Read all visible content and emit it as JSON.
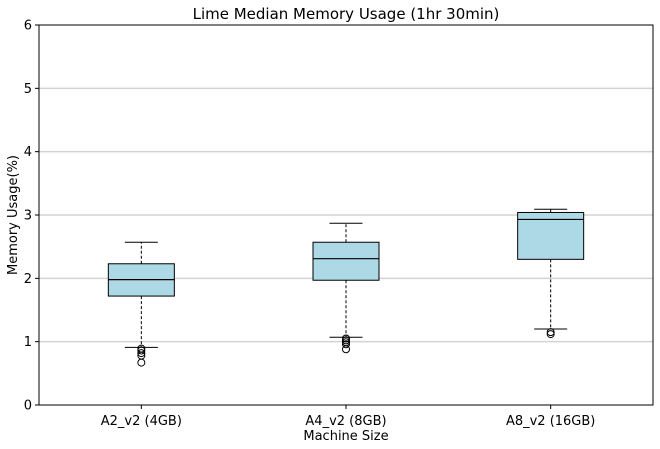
{
  "chart_data": {
    "type": "box",
    "title": "Lime Median Memory Usage (1hr 30min)",
    "xlabel": "Machine Size",
    "ylabel": "Memory Usage(%)",
    "ylim": [
      0,
      6
    ],
    "yticks": [
      0,
      1,
      2,
      3,
      4,
      5,
      6
    ],
    "grid": "horizontal",
    "box_color": "#add8e6",
    "categories": [
      "A2_v2 (4GB)",
      "A4_v2 (8GB)",
      "A8_v2 (16GB)"
    ],
    "boxes": [
      {
        "whisker_low": 0.91,
        "q1": 1.72,
        "median": 1.98,
        "q3": 2.23,
        "whisker_high": 2.57,
        "fliers": [
          0.67,
          0.78,
          0.82,
          0.86,
          0.89
        ]
      },
      {
        "whisker_low": 1.07,
        "q1": 1.97,
        "median": 2.31,
        "q3": 2.57,
        "whisker_high": 2.87,
        "fliers": [
          0.88,
          0.96,
          0.99,
          1.02,
          1.05
        ]
      },
      {
        "whisker_low": 1.2,
        "q1": 2.3,
        "median": 2.93,
        "q3": 3.04,
        "whisker_high": 3.09,
        "fliers": [
          1.12,
          1.15
        ]
      }
    ]
  }
}
